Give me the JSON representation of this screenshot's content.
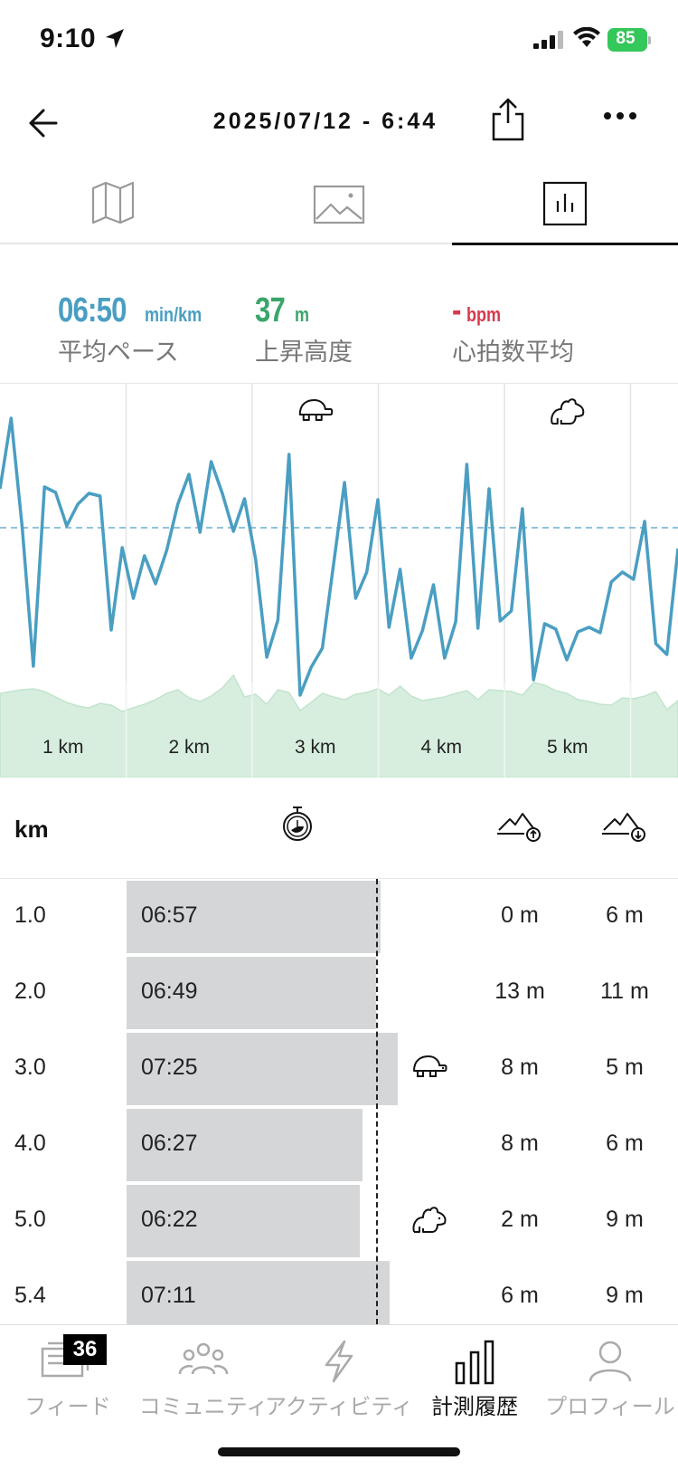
{
  "status_bar": {
    "time": "9:10",
    "battery": "85"
  },
  "header": {
    "title": "2025/07/12 - 6:44"
  },
  "tabs": [
    {
      "icon": "map-icon"
    },
    {
      "icon": "image-icon"
    },
    {
      "icon": "bar-chart-icon",
      "active": true
    }
  ],
  "stats": {
    "pace": {
      "value": "06:50",
      "unit": "min/km",
      "label": "平均ペース",
      "color": "#4a9ec2"
    },
    "elevation": {
      "value": "37",
      "unit": "m",
      "label": "上昇高度",
      "color": "#3aa56a"
    },
    "heart_rate": {
      "value": "-",
      "unit": "bpm",
      "label": "心拍数平均",
      "color": "#d8384c"
    }
  },
  "chart_data": {
    "type": "line",
    "km_labels": [
      "1 km",
      "2 km",
      "3 km",
      "4 km",
      "5 km"
    ],
    "pace_series": [
      540,
      462,
      583,
      736,
      538,
      544,
      581,
      557,
      545,
      548,
      696,
      605,
      661,
      614,
      645,
      608,
      557,
      524,
      588,
      510,
      545,
      587,
      551,
      618,
      726,
      685,
      502,
      768,
      737,
      716,
      624,
      533,
      661,
      632,
      552,
      693,
      629,
      727,
      697,
      646,
      727,
      687,
      513,
      694,
      540,
      686,
      675,
      562,
      751,
      689,
      695,
      729,
      698,
      693,
      699,
      643,
      632,
      640,
      576,
      711,
      723,
      606
    ],
    "average_line": 583,
    "elevation_series": [
      766,
      764,
      762,
      761,
      764,
      770,
      776,
      780,
      782,
      777,
      779,
      786,
      782,
      778,
      773,
      766,
      762,
      771,
      775,
      769,
      760,
      746,
      770,
      767,
      778,
      762,
      765,
      785,
      776,
      766,
      770,
      773,
      767,
      765,
      761,
      768,
      758,
      769,
      774,
      772,
      770,
      766,
      763,
      773,
      762,
      763,
      764,
      768,
      754,
      757,
      763,
      766,
      773,
      775,
      778,
      779,
      771,
      772,
      769,
      764,
      784,
      774
    ],
    "markers": [
      {
        "icon": "turtle-icon",
        "km": 3
      },
      {
        "icon": "rabbit-icon",
        "km": 5
      }
    ]
  },
  "splits": {
    "header_km": "km",
    "rows": [
      {
        "km": "1.0",
        "time": "06:57",
        "seconds": 417,
        "up": "0 m",
        "down": "6 m",
        "badge": ""
      },
      {
        "km": "2.0",
        "time": "06:49",
        "seconds": 409,
        "up": "13 m",
        "down": "11 m",
        "badge": ""
      },
      {
        "km": "3.0",
        "time": "07:25",
        "seconds": 445,
        "up": "8 m",
        "down": "5 m",
        "badge": "turtle-icon"
      },
      {
        "km": "4.0",
        "time": "06:27",
        "seconds": 387,
        "up": "8 m",
        "down": "6 m",
        "badge": ""
      },
      {
        "km": "5.0",
        "time": "06:22",
        "seconds": 382,
        "up": "2 m",
        "down": "9 m",
        "badge": "rabbit-icon"
      },
      {
        "km": "5.4",
        "time": "07:11",
        "seconds": 431,
        "up": "6 m",
        "down": "9 m",
        "badge": ""
      }
    ],
    "average_seconds": 410
  },
  "bottom_nav": {
    "items": [
      {
        "label": "フィード",
        "icon": "feed-icon",
        "badge": "36"
      },
      {
        "label": "コミュニティ",
        "icon": "community-icon"
      },
      {
        "label": "アクティビティ",
        "icon": "lightning-icon"
      },
      {
        "label": "計測履歴",
        "icon": "history-chart-icon",
        "active": true
      },
      {
        "label": "プロフィール",
        "icon": "profile-icon"
      }
    ]
  }
}
